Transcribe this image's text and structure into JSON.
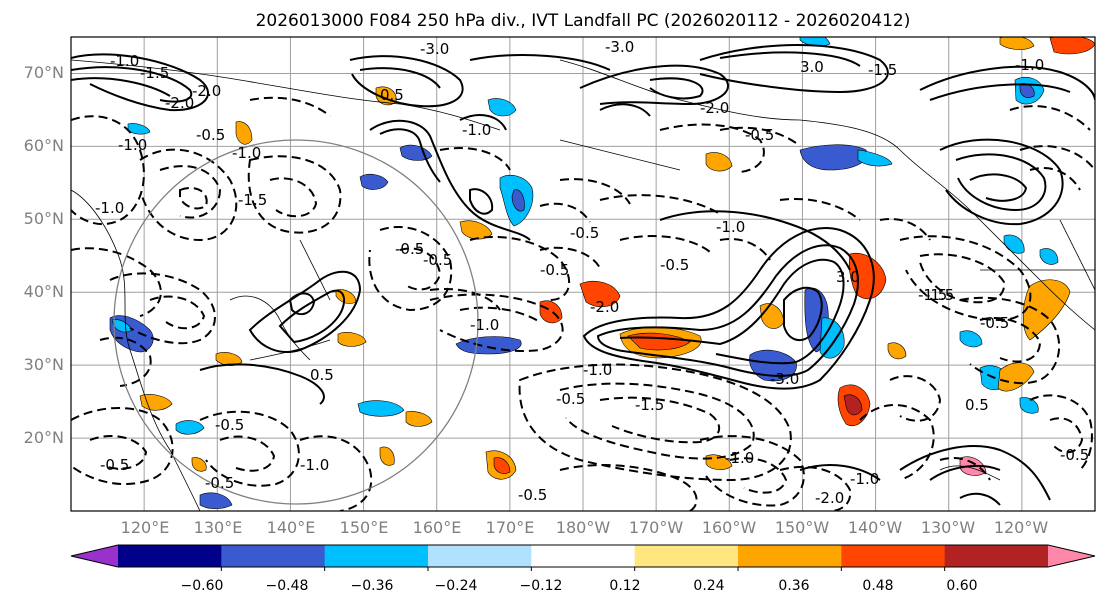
{
  "chart_data": {
    "type": "map",
    "title": "2026013000 F084 250 hPa div., IVT Landfall PC (2026020112 - 2026020412)",
    "lat_ticks": [
      "70°N",
      "60°N",
      "50°N",
      "40°N",
      "30°N",
      "20°N"
    ],
    "lon_ticks": [
      "120°E",
      "130°E",
      "140°E",
      "150°E",
      "160°E",
      "170°E",
      "180°W",
      "170°W",
      "160°W",
      "150°W",
      "140°W",
      "130°W",
      "120°W"
    ],
    "colorbar": {
      "ticks": [
        "−0.60",
        "−0.48",
        "−0.36",
        "−0.24",
        "−0.12",
        "0.12",
        "0.24",
        "0.36",
        "0.48",
        "0.60"
      ],
      "colors": [
        "#9932cc",
        "#00008b",
        "#3a5bd0",
        "#00bfff",
        "#b0e2ff",
        "#ffffff",
        "#ffe680",
        "#ffa500",
        "#ff4500",
        "#b22222",
        "#ff88aa"
      ]
    },
    "contour_labels": [
      "-3.0",
      "-3.0",
      "-1.0",
      "-1.5",
      "-2.0",
      "-0.5",
      "-1.0",
      "-1.0",
      "-1.5",
      "-0.5",
      "-1.0",
      "-0.5",
      "-0.5",
      "-0.5",
      "0.5",
      "-1.0",
      "-2.0",
      "-1.0",
      "-0.5",
      "-1.5",
      "-1.0",
      "-0.5",
      "3.0",
      "-0.5",
      "-1.0",
      "-1.5",
      "-3.0",
      "-1.5",
      "-1.0",
      "0.5",
      "-1.0",
      "-0.5",
      "-1.0",
      "-2.0",
      "-2.0",
      "-0.5",
      "-0.5",
      "-0.5",
      "-1.5",
      "3.0",
      "-1.0",
      "-0.5",
      "-0.5",
      "-2.0",
      "0.5"
    ]
  }
}
